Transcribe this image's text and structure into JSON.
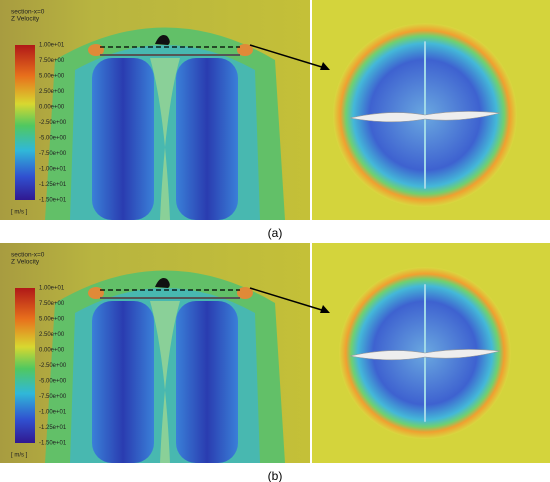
{
  "panels": [
    {
      "label": "(a)",
      "legend": {
        "title": [
          "section-x=0",
          "Z Velocity"
        ],
        "ticks": [
          "1.00e+01",
          "7.50e+00",
          "5.00e+00",
          "2.50e+00",
          "0.00e+00",
          "-2.50e+00",
          "-5.00e+00",
          "-7.50e+00",
          "-1.00e+01",
          "-1.25e+01",
          "-1.50e+01"
        ],
        "unit": "[ m/s ]"
      }
    },
    {
      "label": "(b)",
      "legend": {
        "title": [
          "section-x=0",
          "Z Velocity"
        ],
        "ticks": [
          "1.00e+01",
          "7.50e+00",
          "5.00e+00",
          "2.50e+00",
          "0.00e+00",
          "-2.50e+00",
          "-5.00e+00",
          "-7.50e+00",
          "-1.00e+01",
          "-1.25e+01",
          "-1.50e+01"
        ],
        "unit": "[ m/s ]"
      }
    }
  ]
}
